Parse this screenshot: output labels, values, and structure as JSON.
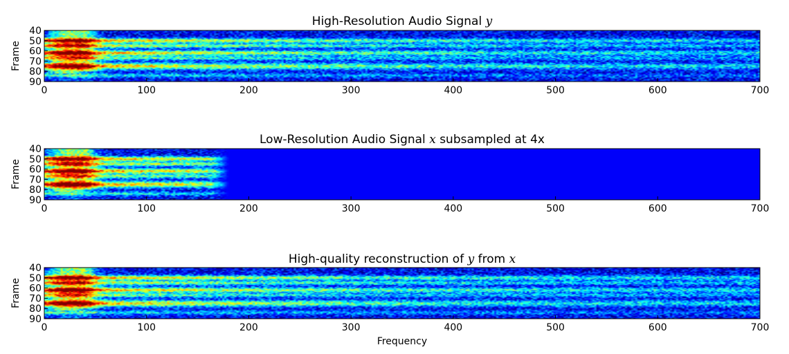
{
  "chart_data": [
    {
      "type": "heatmap",
      "title_parts": [
        "High-Resolution Audio Signal ",
        "y",
        ""
      ],
      "xlabel": "",
      "ylabel": "Frame",
      "xlim": [
        0,
        700
      ],
      "ylim": [
        40,
        90
      ],
      "x_ticks": [
        "0",
        "100",
        "200",
        "300",
        "400",
        "500",
        "600",
        "700"
      ],
      "y_ticks": [
        "40",
        "50",
        "60",
        "70",
        "80",
        "90"
      ],
      "colormap": "jet",
      "band_cutoff": 700
    },
    {
      "type": "heatmap",
      "title_parts": [
        "Low-Resolution Audio Signal ",
        "x",
        " subsampled at 4x"
      ],
      "xlabel": "",
      "ylabel": "Frame",
      "xlim": [
        0,
        700
      ],
      "ylim": [
        40,
        90
      ],
      "x_ticks": [
        "0",
        "100",
        "200",
        "300",
        "400",
        "500",
        "600",
        "700"
      ],
      "y_ticks": [
        "40",
        "50",
        "60",
        "70",
        "80",
        "90"
      ],
      "colormap": "jet",
      "band_cutoff": 180
    },
    {
      "type": "heatmap",
      "title_parts": [
        "High-quality reconstruction of ",
        "y",
        " from ",
        "x",
        ""
      ],
      "xlabel": "Frequency",
      "ylabel": "Frame",
      "xlim": [
        0,
        700
      ],
      "ylim": [
        40,
        90
      ],
      "x_ticks": [
        "0",
        "100",
        "200",
        "300",
        "400",
        "500",
        "600",
        "700"
      ],
      "y_ticks": [
        "40",
        "50",
        "60",
        "70",
        "80",
        "90"
      ],
      "colormap": "jet",
      "band_cutoff": 700
    }
  ],
  "colors": {
    "background_low": "#00007f",
    "jet_mid": "#00ffff",
    "jet_high": "#ff0000"
  }
}
